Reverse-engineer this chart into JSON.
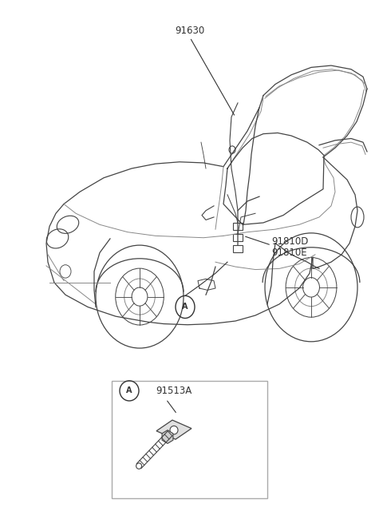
{
  "bg_color": "#ffffff",
  "text_color": "#333333",
  "label_91630": "91630",
  "label_91810D": "91810D",
  "label_91810E": "91810E",
  "label_91513A": "91513A",
  "label_A": "A",
  "line_color": "#444444",
  "fig_width": 4.8,
  "fig_height": 6.55,
  "dpi": 100,
  "annotation_fontsize": 8.5,
  "car_lw": 0.9,
  "gray_lw": 0.7
}
